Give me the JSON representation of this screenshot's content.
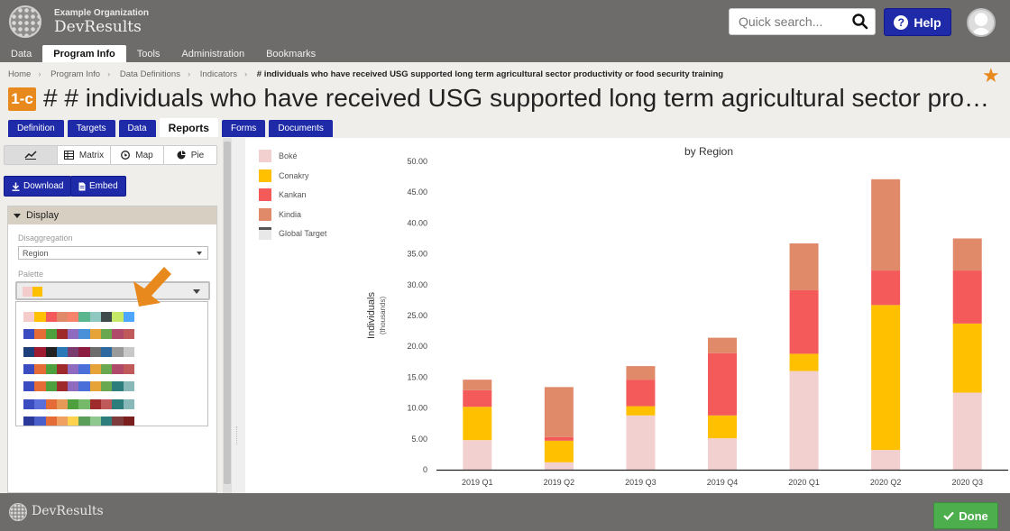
{
  "header": {
    "org_name": "Example Organization",
    "brand": "DevResults",
    "search_placeholder": "Quick search...",
    "help_label": "Help",
    "nav": [
      "Data",
      "Program Info",
      "Tools",
      "Administration",
      "Bookmarks"
    ],
    "nav_active": 1
  },
  "breadcrumb": {
    "items": [
      "Home",
      "Program Info",
      "Data Definitions",
      "Indicators"
    ],
    "current": "# individuals who have received USG supported long term agricultural sector productivity or food security training"
  },
  "indicator": {
    "code": "1-c",
    "title": "# individuals who have received USG supported long term agricultural sector productivity or food security training"
  },
  "subtabs": [
    "Definition",
    "Targets",
    "Data",
    "Reports",
    "Forms",
    "Documents"
  ],
  "subtab_active": 3,
  "left_panel": {
    "view_types": [
      "",
      "Matrix",
      "Map",
      "Pie"
    ],
    "view_active": 0,
    "download_label": "Download",
    "embed_label": "Embed",
    "display_label": "Display",
    "disaggregation_label": "Disaggregation",
    "disaggregation_value": "Region",
    "palette_label": "Palette",
    "selected_palette": [
      "#f4cccc",
      "#ffc000"
    ],
    "palettes": [
      [
        "#f4cccc",
        "#ffc000",
        "#f55a5a",
        "#e08a6a",
        "#f8836b",
        "#5ab68f",
        "#8fc8c0",
        "#3f4a4a",
        "#c6e867",
        "#4da6ff"
      ],
      [
        "#3b4cc0",
        "#e66c37",
        "#4e9f3d",
        "#9e2a2b",
        "#8e6bbf",
        "#4a90d9",
        "#e6a337",
        "#6aa84f",
        "#b04a6a",
        "#c05a5a"
      ],
      [
        "#1f3f7a",
        "#9e1b32",
        "#222222",
        "#2a78b5",
        "#7a3b6e",
        "#8c1d40",
        "#6d6d6d",
        "#2e6aa0",
        "#9a9a9a",
        "#c8c8c8"
      ],
      [
        "#3b4cc0",
        "#e66c37",
        "#4e9f3d",
        "#9e2a2b",
        "#8e6bbf",
        "#4a6fd9",
        "#e6a337",
        "#6aa84f",
        "#b04a6a",
        "#c05a5a"
      ],
      [
        "#3b4cc0",
        "#e66c37",
        "#4e9f3d",
        "#9e2a2b",
        "#8e6bbf",
        "#4a6fd9",
        "#e6a337",
        "#6aa84f",
        "#2e7d7d",
        "#88b8b8"
      ],
      [
        "#3b4cc0",
        "#5a6fd9",
        "#e66c37",
        "#e69a57",
        "#4e9f3d",
        "#76b96b",
        "#9e2a2b",
        "#c05a5a",
        "#2e7d7d",
        "#88b8b8"
      ],
      [
        "#2b3a9a",
        "#4a5fc9",
        "#e66c37",
        "#f0a060",
        "#ffd24d",
        "#5a9e5a",
        "#8fc88f",
        "#2e7d7d",
        "#7d3b3b",
        "#7a1e1e"
      ],
      [
        "#3b4cc0",
        "#6a7bd9",
        "#9aa6e6",
        "#e66c37",
        "#f09a67",
        "#e6a337",
        "#6aa84f",
        "#9ccc8a",
        "#8e6bbf",
        "#7a1e1e"
      ],
      [
        "#2a78b5",
        "#f07c1e",
        "#3ba13b",
        "#d62728",
        "#9467bd",
        "#8c564b",
        "#e377c2",
        "#7f7f7f",
        "#bcbd22",
        "#17becf"
      ],
      [
        "#2a78b5",
        "#aec7e8",
        "#f07c1e",
        "#ffbb78",
        "#3ba13b",
        "#98df8a",
        "#d62728",
        "#ff9896",
        "#9467bd",
        "#c5b0d5"
      ],
      [
        "#2a78b5",
        "#6baed6",
        "#9ecae1",
        "#f07c1e",
        "#fd8d3c",
        "#fdae6b",
        "#3ba13b",
        "#74c476",
        "#a1d99b",
        "#d62728"
      ]
    ]
  },
  "chart_data": {
    "type": "bar",
    "stacked": true,
    "title": "by Region",
    "ylabel": "Individuals",
    "ylabel_sub": "(thousands)",
    "ylim": [
      0,
      50
    ],
    "yticks": [
      "0",
      "5.00",
      "10.00",
      "15.00",
      "20.00",
      "25.00",
      "30.00",
      "35.00",
      "40.00",
      "45.00",
      "50.00"
    ],
    "categories": [
      "2019 Q1",
      "2019 Q2",
      "2019 Q3",
      "2019 Q4",
      "2020 Q1",
      "2020 Q2",
      "2020 Q3"
    ],
    "series": [
      {
        "name": "Boké",
        "color": "#f2d0d0",
        "values": [
          4.8,
          1.2,
          8.8,
          5.1,
          16.0,
          3.2,
          12.5
        ]
      },
      {
        "name": "Conakry",
        "color": "#ffc000",
        "values": [
          5.4,
          3.5,
          1.5,
          3.7,
          2.8,
          23.5,
          11.2
        ]
      },
      {
        "name": "Kankan",
        "color": "#f55a5a",
        "values": [
          2.7,
          0.6,
          4.3,
          10.1,
          10.3,
          5.6,
          8.6
        ]
      },
      {
        "name": "Kindia",
        "color": "#e08a6a",
        "values": [
          1.7,
          8.1,
          2.2,
          2.5,
          7.6,
          14.8,
          5.2
        ]
      }
    ],
    "legend": [
      {
        "name": "Boké",
        "color": "#f2d0d0",
        "type": "swatch"
      },
      {
        "name": "Conakry",
        "color": "#ffc000",
        "type": "swatch"
      },
      {
        "name": "Kankan",
        "color": "#f55a5a",
        "type": "swatch"
      },
      {
        "name": "Kindia",
        "color": "#e08a6a",
        "type": "swatch"
      },
      {
        "name": "Global Target",
        "color": "#555555",
        "type": "line"
      }
    ],
    "legend_position": "left",
    "grid": false
  },
  "footer": {
    "brand": "DevResults",
    "done_label": "Done"
  },
  "colors": {
    "header_bg": "#6d6c6a",
    "primary": "#1e2aa8",
    "accent": "#e8891e",
    "success": "#4cae4c"
  }
}
